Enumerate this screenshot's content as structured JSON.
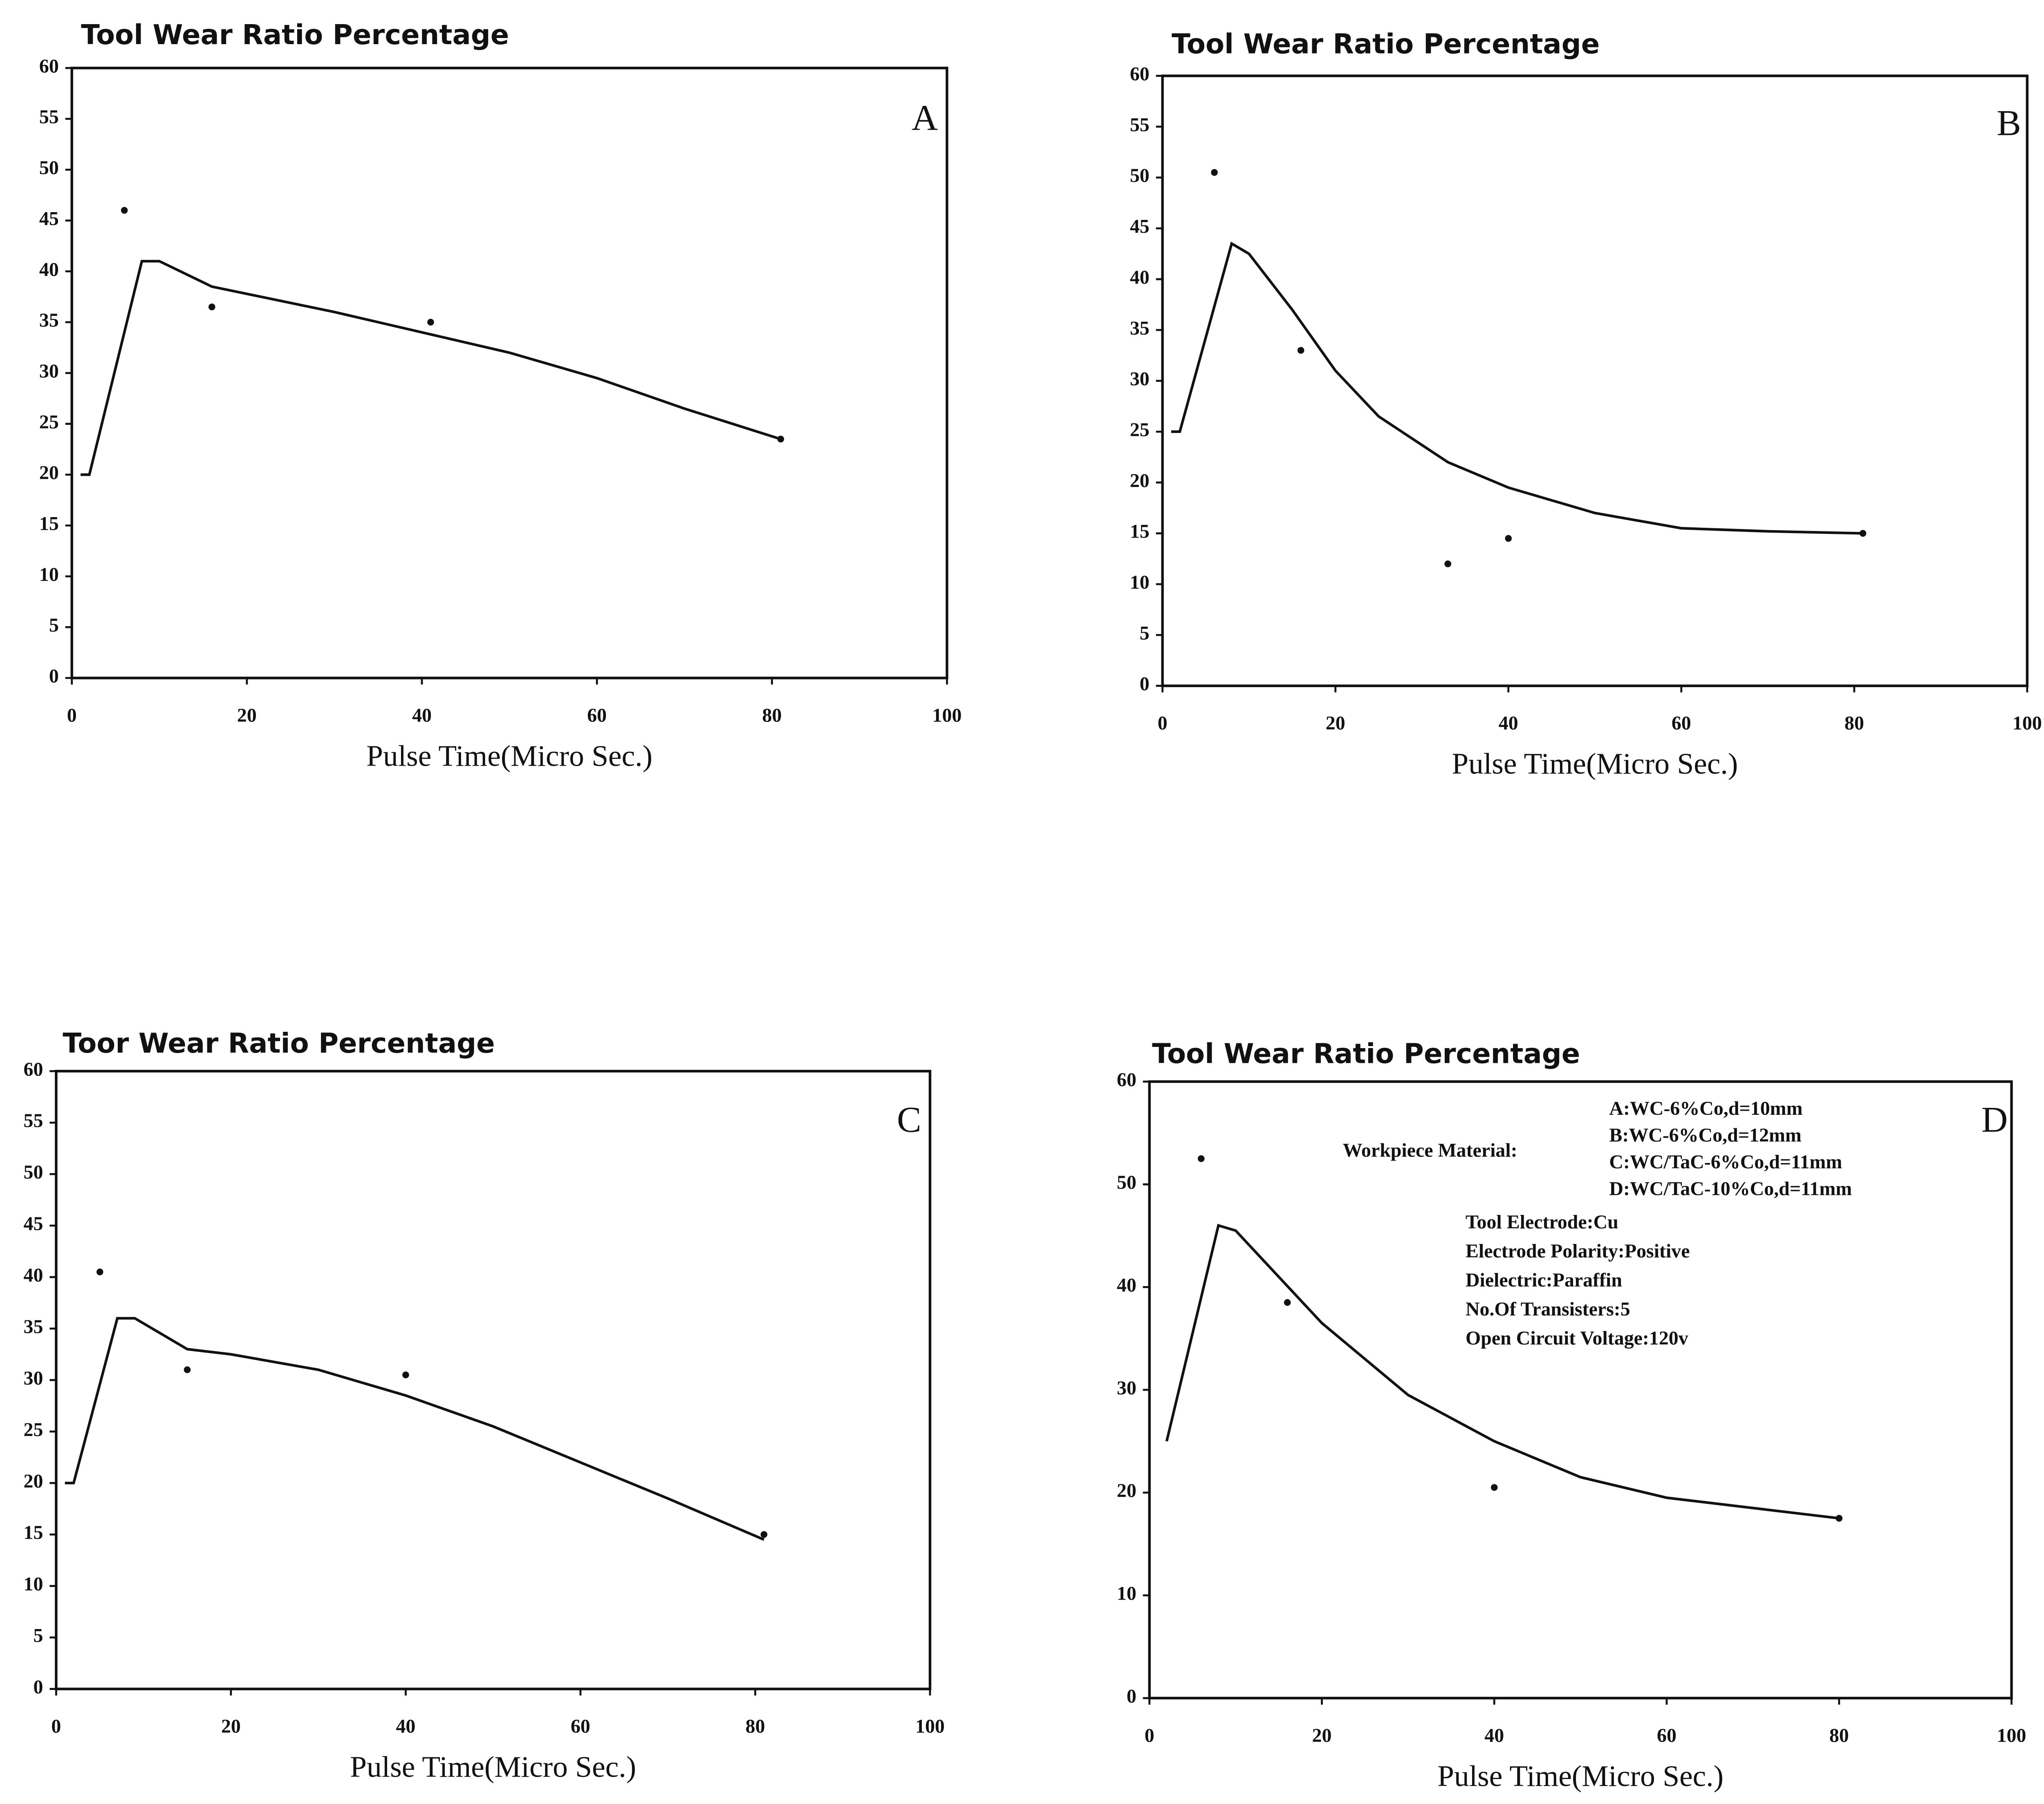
{
  "chart_data": [
    {
      "type": "line",
      "title": "Tool Wear Ratio Percentage",
      "x_label": "Pulse Time(Micro Sec.)",
      "panel_label": "A",
      "xlim": [
        0,
        100
      ],
      "xticks": [
        0,
        20,
        40,
        60,
        80,
        100
      ],
      "ylim": [
        0,
        60
      ],
      "yticks": [
        0,
        5,
        10,
        15,
        20,
        25,
        30,
        35,
        40,
        45,
        50,
        55,
        60
      ],
      "color": "#111111",
      "curve": {
        "x": [
          1,
          2,
          8,
          10,
          16,
          30,
          40,
          50,
          60,
          70,
          81
        ],
        "y": [
          20,
          20,
          41,
          41,
          38.5,
          36,
          34,
          32,
          29.5,
          26.5,
          23.5
        ]
      },
      "points": {
        "x": [
          6,
          16,
          41,
          81
        ],
        "y": [
          46,
          36.5,
          35,
          23.5
        ]
      }
    },
    {
      "type": "line",
      "title": "Tool Wear Ratio Percentage",
      "x_label": "Pulse Time(Micro Sec.)",
      "panel_label": "B",
      "xlim": [
        0,
        100
      ],
      "xticks": [
        0,
        20,
        40,
        60,
        80,
        100
      ],
      "ylim": [
        0,
        60
      ],
      "yticks": [
        0,
        5,
        10,
        15,
        20,
        25,
        30,
        35,
        40,
        45,
        50,
        55,
        60
      ],
      "color": "#111111",
      "curve": {
        "x": [
          1,
          2,
          8,
          10,
          15,
          20,
          25,
          33,
          40,
          50,
          60,
          70,
          81
        ],
        "y": [
          25,
          25,
          43.5,
          42.5,
          37,
          31,
          26.5,
          22,
          19.5,
          17,
          15.5,
          15.2,
          15
        ]
      },
      "points": {
        "x": [
          6,
          16,
          33,
          40,
          81
        ],
        "y": [
          50.5,
          33,
          12,
          14.5,
          15
        ]
      }
    },
    {
      "type": "line",
      "title": "Toor Wear Ratio Percentage",
      "x_label": "Pulse Time(Micro Sec.)",
      "panel_label": "C",
      "xlim": [
        0,
        100
      ],
      "xticks": [
        0,
        20,
        40,
        60,
        80,
        100
      ],
      "ylim": [
        0,
        60
      ],
      "yticks": [
        0,
        5,
        10,
        15,
        20,
        25,
        30,
        35,
        40,
        45,
        50,
        55,
        60
      ],
      "color": "#111111",
      "curve": {
        "x": [
          1,
          2,
          7,
          9,
          15,
          20,
          30,
          40,
          50,
          60,
          70,
          81
        ],
        "y": [
          20,
          20,
          36,
          36,
          33,
          32.5,
          31,
          28.5,
          25.5,
          22,
          18.5,
          14.5
        ]
      },
      "points": {
        "x": [
          5,
          15,
          40,
          81
        ],
        "y": [
          40.5,
          31,
          30.5,
          15
        ]
      }
    },
    {
      "type": "line",
      "title": "Tool Wear Ratio Percentage",
      "x_label": "Pulse Time(Micro Sec.)",
      "panel_label": "D",
      "xlim": [
        0,
        100
      ],
      "xticks": [
        0,
        20,
        40,
        60,
        80,
        100
      ],
      "ylim": [
        0,
        60
      ],
      "yticks": [
        0,
        10,
        20,
        30,
        40,
        50,
        60
      ],
      "color": "#111111",
      "curve": {
        "x": [
          2,
          8,
          10,
          15,
          20,
          30,
          40,
          50,
          60,
          70,
          80
        ],
        "y": [
          25,
          46,
          45.5,
          41,
          36.5,
          29.5,
          25,
          21.5,
          19.5,
          18.5,
          17.5
        ]
      },
      "points": {
        "x": [
          6,
          16,
          40,
          80
        ],
        "y": [
          52.5,
          38.5,
          20.5,
          17.5
        ]
      },
      "annotation": {
        "workpiece_label": "Workpiece Material:",
        "workpiece_items": [
          "A:WC-6%Co,d=10mm",
          "B:WC-6%Co,d=12mm",
          "C:WC/TaC-6%Co,d=11mm",
          "D:WC/TaC-10%Co,d=11mm"
        ],
        "conditions": [
          "Tool Electrode:Cu",
          "Electrode Polarity:Positive",
          "Dielectric:Paraffin",
          "No.Of Transisters:5",
          "Open Circuit Voltage:120v"
        ]
      }
    }
  ]
}
